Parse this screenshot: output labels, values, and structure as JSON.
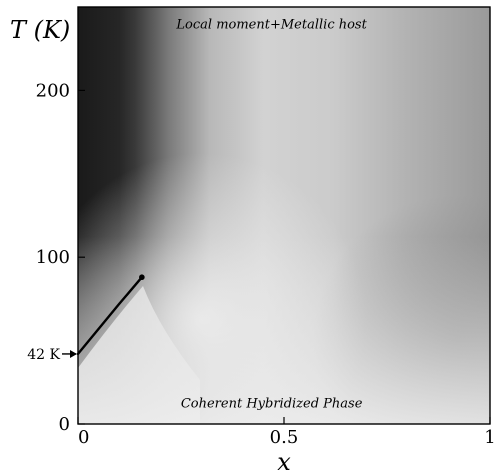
{
  "chart_data": {
    "type": "heatmap",
    "xlabel": "x",
    "ylabel": "T (K)",
    "xlim": [
      0,
      1
    ],
    "ylim": [
      0,
      250
    ],
    "x_ticks": [
      {
        "value": 0,
        "label": "0"
      },
      {
        "value": 0.5,
        "label": "0.5"
      },
      {
        "value": 1,
        "label": "1"
      }
    ],
    "y_ticks": [
      {
        "value": 0,
        "label": "0"
      },
      {
        "value": 100,
        "label": "100"
      },
      {
        "value": 200,
        "label": "200"
      }
    ],
    "regions": [
      {
        "label": "Local moment+Metallic host",
        "x": 0.47,
        "y": 240
      },
      {
        "label": "Coherent Hybridized Phase",
        "x": 0.47,
        "y": 13
      }
    ],
    "crossover_line": [
      {
        "x": 0.0,
        "y": 42
      },
      {
        "x": 0.05,
        "y": 57
      },
      {
        "x": 0.1,
        "y": 72
      },
      {
        "x": 0.155,
        "y": 88
      }
    ],
    "annotation": {
      "label": "42 K",
      "x": 0,
      "y": 42
    }
  }
}
